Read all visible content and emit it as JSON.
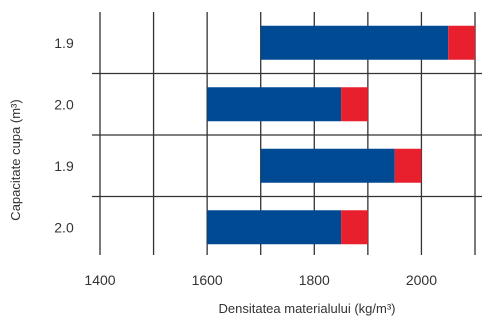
{
  "chart_data": {
    "type": "bar",
    "orientation": "horizontal",
    "stacked": true,
    "title": "",
    "xlabel": "Densitatea materialului (kg/m³)",
    "ylabel": "Capacitate cupa (m³)",
    "xlim": [
      1400,
      2100
    ],
    "xticks": [
      "1400",
      "1600",
      "1800",
      "2000"
    ],
    "categories": [
      "1.9",
      "2.0",
      "1.9",
      "2.0"
    ],
    "series": [
      {
        "color": "#004a93",
        "ranges": [
          [
            1700,
            2050
          ],
          [
            1600,
            1850
          ],
          [
            1700,
            1950
          ],
          [
            1600,
            1850
          ]
        ]
      },
      {
        "color": "#e8202e",
        "ranges": [
          [
            2050,
            2100
          ],
          [
            1850,
            1900
          ],
          [
            1950,
            2000
          ],
          [
            1850,
            1900
          ]
        ]
      }
    ],
    "grid": true,
    "legend": "none"
  }
}
